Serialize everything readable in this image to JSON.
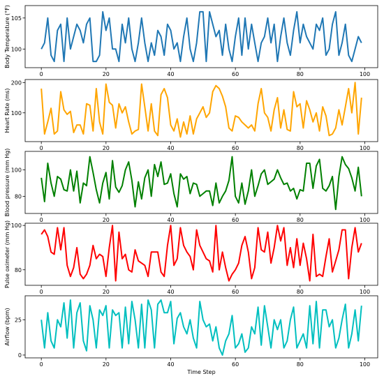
{
  "chart_data": [
    {
      "type": "line",
      "ylabel": "Body Temperature (°F)",
      "xlabel": "",
      "xlim": [
        -5,
        104
      ],
      "ylim": [
        97,
        107
      ],
      "xticks": [
        0,
        20,
        40,
        60,
        80,
        100
      ],
      "yticks": [
        100,
        105
      ],
      "color": "#1f77b4",
      "x": [
        0,
        1,
        2,
        3,
        4,
        5,
        6,
        7,
        8,
        9,
        10,
        11,
        12,
        13,
        14,
        15,
        16,
        17,
        18,
        19,
        20,
        21,
        22,
        23,
        24,
        25,
        26,
        27,
        28,
        29,
        30,
        31,
        32,
        33,
        34,
        35,
        36,
        37,
        38,
        39,
        40,
        41,
        42,
        43,
        44,
        45,
        46,
        47,
        48,
        49,
        50,
        51,
        52,
        53,
        54,
        55,
        56,
        57,
        58,
        59,
        60,
        61,
        62,
        63,
        64,
        65,
        66,
        67,
        68,
        69,
        70,
        71,
        72,
        73,
        74,
        75,
        76,
        77,
        78,
        79,
        80,
        81,
        82,
        83,
        84,
        85,
        86,
        87,
        88,
        89,
        90,
        91,
        92,
        93,
        94,
        95,
        96,
        97,
        98,
        99
      ],
      "values": [
        100,
        101,
        105,
        99,
        98,
        103,
        104,
        98,
        105,
        100,
        102,
        104,
        103,
        101,
        104,
        105,
        98,
        98,
        99,
        106,
        103,
        105,
        100,
        100,
        98,
        104,
        101,
        105,
        100,
        98,
        101,
        105,
        101,
        98,
        101,
        99,
        103,
        102,
        99,
        104,
        103,
        100,
        101,
        98,
        102,
        105,
        100,
        98,
        101,
        106,
        106,
        98,
        106,
        104,
        102,
        103,
        99,
        104,
        100,
        98,
        102,
        105,
        99,
        105,
        100,
        104,
        101,
        98,
        101,
        102,
        105,
        101,
        104,
        98,
        102,
        105,
        101,
        99,
        103,
        106,
        101,
        104,
        102,
        101,
        100,
        104,
        103,
        105,
        99,
        100,
        104,
        106,
        99,
        101,
        104,
        99,
        98,
        100,
        102,
        101
      ]
    },
    {
      "type": "line",
      "ylabel": "Heart Rate (ms)",
      "xlabel": "",
      "xlim": [
        -5,
        104
      ],
      "ylim": [
        5,
        210
      ],
      "xticks": [
        0,
        20,
        40,
        60,
        80,
        100
      ],
      "yticks": [
        100,
        200
      ],
      "color": "#ffa500",
      "x": [
        0,
        1,
        2,
        3,
        4,
        5,
        6,
        7,
        8,
        9,
        10,
        11,
        12,
        13,
        14,
        15,
        16,
        17,
        18,
        19,
        20,
        21,
        22,
        23,
        24,
        25,
        26,
        27,
        28,
        29,
        30,
        31,
        32,
        33,
        34,
        35,
        36,
        37,
        38,
        39,
        40,
        41,
        42,
        43,
        44,
        45,
        46,
        47,
        48,
        49,
        50,
        51,
        52,
        53,
        54,
        55,
        56,
        57,
        58,
        59,
        60,
        61,
        62,
        63,
        64,
        65,
        66,
        67,
        68,
        69,
        70,
        71,
        72,
        73,
        74,
        75,
        76,
        77,
        78,
        79,
        80,
        81,
        82,
        83,
        84,
        85,
        86,
        87,
        88,
        89,
        90,
        91,
        92,
        93,
        94,
        95,
        96,
        97,
        98,
        99
      ],
      "values": [
        180,
        30,
        70,
        115,
        30,
        40,
        170,
        110,
        95,
        105,
        35,
        60,
        60,
        30,
        130,
        125,
        40,
        180,
        70,
        30,
        195,
        135,
        125,
        50,
        130,
        100,
        120,
        70,
        30,
        40,
        45,
        195,
        120,
        40,
        130,
        40,
        25,
        160,
        180,
        150,
        60,
        40,
        80,
        20,
        70,
        30,
        90,
        30,
        80,
        100,
        120,
        85,
        100,
        170,
        190,
        180,
        155,
        120,
        50,
        40,
        90,
        85,
        70,
        60,
        50,
        60,
        40,
        130,
        180,
        100,
        85,
        40,
        110,
        150,
        50,
        110,
        45,
        40,
        170,
        120,
        130,
        50,
        140,
        110,
        70,
        100,
        40,
        120,
        90,
        25,
        30,
        50,
        110,
        60,
        120,
        180,
        100,
        200,
        30,
        150
      ]
    },
    {
      "type": "line",
      "ylabel": "Blood pressure (mm Hg)",
      "xlabel": "",
      "xlim": [
        -5,
        104
      ],
      "ylim": [
        67,
        114
      ],
      "xticks": [
        0,
        20,
        40,
        60,
        80,
        100
      ],
      "yticks": [
        80,
        100
      ],
      "color": "#008000",
      "x": [
        0,
        1,
        2,
        3,
        4,
        5,
        6,
        7,
        8,
        9,
        10,
        11,
        12,
        13,
        14,
        15,
        16,
        17,
        18,
        19,
        20,
        21,
        22,
        23,
        24,
        25,
        26,
        27,
        28,
        29,
        30,
        31,
        32,
        33,
        34,
        35,
        36,
        37,
        38,
        39,
        40,
        41,
        42,
        43,
        44,
        45,
        46,
        47,
        48,
        49,
        50,
        51,
        52,
        53,
        54,
        55,
        56,
        57,
        58,
        59,
        60,
        61,
        62,
        63,
        64,
        65,
        66,
        67,
        68,
        69,
        70,
        71,
        72,
        73,
        74,
        75,
        76,
        77,
        78,
        79,
        80,
        81,
        82,
        83,
        84,
        85,
        86,
        87,
        88,
        89,
        90,
        91,
        92,
        93,
        94,
        95,
        96,
        97,
        98,
        99
      ],
      "values": [
        94,
        76,
        105,
        90,
        80,
        95,
        93,
        85,
        84,
        100,
        84,
        99,
        75,
        90,
        88,
        110,
        98,
        85,
        75,
        90,
        98,
        78,
        107,
        87,
        83,
        88,
        100,
        106,
        92,
        72,
        91,
        78,
        94,
        100,
        80,
        104,
        95,
        106,
        89,
        90,
        97,
        82,
        72,
        97,
        93,
        95,
        82,
        90,
        89,
        80,
        82,
        84,
        84,
        73,
        90,
        75,
        80,
        84,
        92,
        110,
        80,
        75,
        90,
        74,
        84,
        100,
        80,
        88,
        97,
        100,
        89,
        91,
        93,
        100,
        94,
        89,
        90,
        84,
        86,
        78,
        85,
        84,
        105,
        105,
        86,
        103,
        108,
        86,
        84,
        88,
        95,
        70,
        95,
        110,
        104,
        101,
        94,
        84,
        102,
        80
      ]
    },
    {
      "type": "line",
      "ylabel": "Pulse oximeter (mm Hg)",
      "xlabel": "",
      "xlim": [
        -5,
        104
      ],
      "ylim": [
        73,
        101
      ],
      "xticks": [
        0,
        20,
        40,
        60,
        80,
        100
      ],
      "yticks": [
        80,
        100
      ],
      "color": "#ff0000",
      "x": [
        0,
        1,
        2,
        3,
        4,
        5,
        6,
        7,
        8,
        9,
        10,
        11,
        12,
        13,
        14,
        15,
        16,
        17,
        18,
        19,
        20,
        21,
        22,
        23,
        24,
        25,
        26,
        27,
        28,
        29,
        30,
        31,
        32,
        33,
        34,
        35,
        36,
        37,
        38,
        39,
        40,
        41,
        42,
        43,
        44,
        45,
        46,
        47,
        48,
        49,
        50,
        51,
        52,
        53,
        54,
        55,
        56,
        57,
        58,
        59,
        60,
        61,
        62,
        63,
        64,
        65,
        66,
        67,
        68,
        69,
        70,
        71,
        72,
        73,
        74,
        75,
        76,
        77,
        78,
        79,
        80,
        81,
        82,
        83,
        84,
        85,
        86,
        87,
        88,
        89,
        90,
        91,
        92,
        93,
        94,
        95,
        96,
        97,
        98,
        99
      ],
      "values": [
        96,
        98,
        95,
        88,
        87,
        99,
        89,
        99,
        82,
        77,
        81,
        90,
        78,
        76,
        78,
        82,
        91,
        85,
        87,
        86,
        77,
        90,
        100,
        75,
        97,
        85,
        87,
        80,
        79,
        89,
        84,
        83,
        82,
        77,
        88,
        88,
        88,
        79,
        77,
        91,
        100,
        82,
        85,
        99,
        91,
        88,
        86,
        80,
        98,
        91,
        88,
        85,
        84,
        79,
        100,
        80,
        88,
        81,
        75,
        78,
        80,
        83,
        91,
        95,
        88,
        76,
        81,
        99,
        89,
        88,
        97,
        83,
        90,
        100,
        93,
        99,
        82,
        90,
        81,
        94,
        82,
        92,
        85,
        75,
        96,
        77,
        78,
        77,
        86,
        94,
        79,
        84,
        89,
        98,
        98,
        76,
        90,
        99,
        88,
        92
      ]
    },
    {
      "type": "line",
      "ylabel": "Airflow (bpm)",
      "xlabel": "Time Step",
      "xlim": [
        -5,
        104
      ],
      "ylim": [
        -2,
        42
      ],
      "xticks": [
        0,
        20,
        40,
        60,
        80,
        100
      ],
      "yticks": [
        0,
        25
      ],
      "color": "#00bfbf",
      "x": [
        0,
        1,
        2,
        3,
        4,
        5,
        6,
        7,
        8,
        9,
        10,
        11,
        12,
        13,
        14,
        15,
        16,
        17,
        18,
        19,
        20,
        21,
        22,
        23,
        24,
        25,
        26,
        27,
        28,
        29,
        30,
        31,
        32,
        33,
        34,
        35,
        36,
        37,
        38,
        39,
        40,
        41,
        42,
        43,
        44,
        45,
        46,
        47,
        48,
        49,
        50,
        51,
        52,
        53,
        54,
        55,
        56,
        57,
        58,
        59,
        60,
        61,
        62,
        63,
        64,
        65,
        66,
        67,
        68,
        69,
        70,
        71,
        72,
        73,
        74,
        75,
        76,
        77,
        78,
        79,
        80,
        81,
        82,
        83,
        84,
        85,
        86,
        87,
        88,
        89,
        90,
        91,
        92,
        93,
        94,
        95,
        96,
        97,
        98,
        99
      ],
      "values": [
        25,
        5,
        30,
        10,
        5,
        25,
        20,
        37,
        12,
        39,
        5,
        30,
        37,
        10,
        3,
        35,
        25,
        5,
        32,
        28,
        35,
        5,
        32,
        28,
        30,
        5,
        34,
        8,
        38,
        25,
        5,
        36,
        5,
        39,
        32,
        5,
        36,
        39,
        30,
        30,
        38,
        8,
        26,
        30,
        20,
        15,
        25,
        12,
        5,
        38,
        25,
        20,
        22,
        10,
        20,
        5,
        0,
        10,
        15,
        28,
        5,
        8,
        15,
        2,
        5,
        20,
        15,
        34,
        7,
        35,
        20,
        5,
        25,
        18,
        25,
        5,
        10,
        25,
        34,
        5,
        10,
        15,
        5,
        35,
        8,
        38,
        5,
        32,
        32,
        20,
        25,
        5,
        12,
        25,
        36,
        5,
        15,
        32,
        10,
        35
      ]
    }
  ]
}
